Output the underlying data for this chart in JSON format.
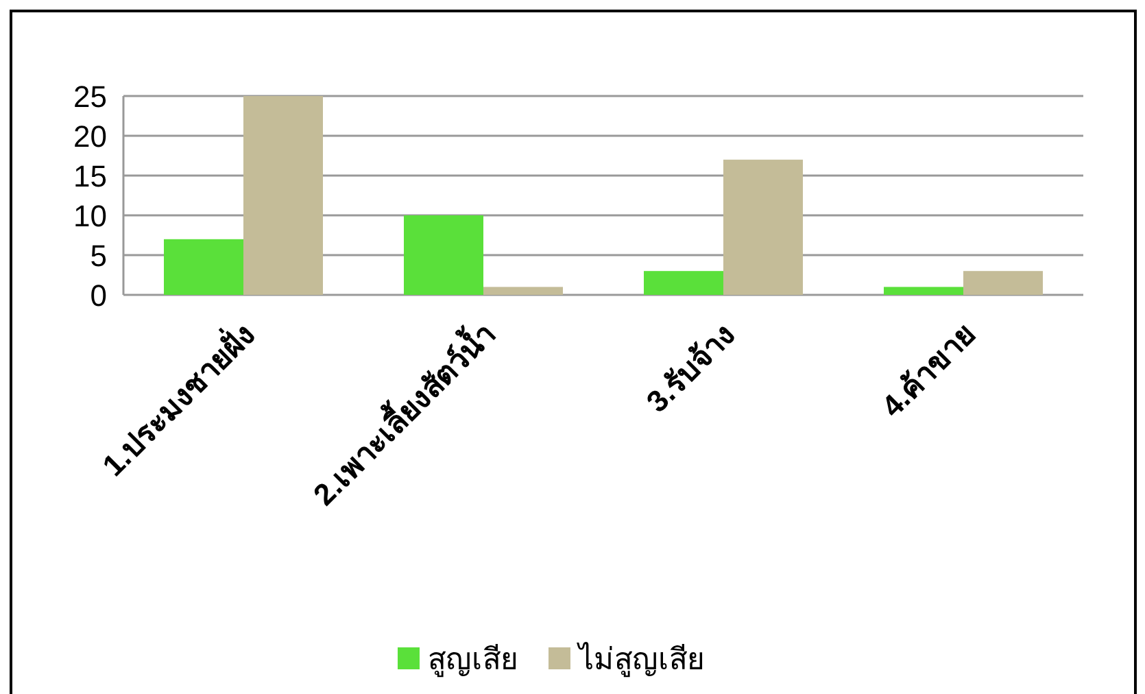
{
  "chart_data": {
    "type": "bar",
    "categories": [
      "1.ประมงชายฝั่ง",
      "2.เพาะเลี้ยงสัตว์น้ำ",
      "3.รับจ้าง",
      "4.ค้าขาย"
    ],
    "series": [
      {
        "name": "สูญเสีย",
        "color": "#5ae03a",
        "values": [
          7,
          10,
          3,
          1
        ]
      },
      {
        "name": "ไม่สูญเสีย",
        "color": "#c4bc98",
        "values": [
          25,
          1,
          17,
          3
        ]
      }
    ],
    "ylim": [
      0,
      25
    ],
    "yticks": [
      0,
      5,
      10,
      15,
      20,
      25
    ],
    "grid": "y",
    "legend": "bottom"
  }
}
